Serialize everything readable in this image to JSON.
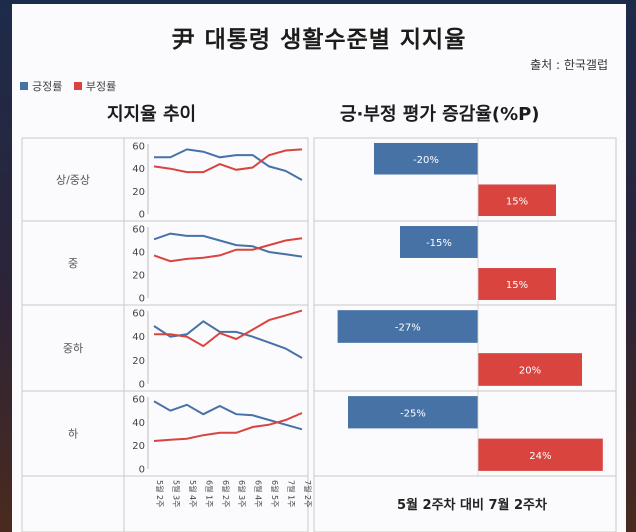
{
  "title": "尹 대통령 생활수준별 지지율",
  "source": "출처 : 한국갤럽",
  "legend": [
    {
      "label": "긍정률",
      "color": "#4672a6"
    },
    {
      "label": "부정률",
      "color": "#d9443f"
    }
  ],
  "left_panel_title": "지지율 추이",
  "right_panel_title": "긍·부정 평가 증감율(%P)",
  "footer": "5월 2주차 대비 7월 2주차",
  "chart_data": [
    {
      "type": "line",
      "title": "지지율 추이",
      "x": [
        "5월 2주",
        "5월 3주",
        "5월 4주",
        "6월 1주",
        "6월 2주",
        "6월 3주",
        "6월 4주",
        "6월 5주",
        "7월 1주",
        "7월 2주"
      ],
      "ylim": [
        0,
        60
      ],
      "yticks": [
        0,
        20,
        40,
        60
      ],
      "colors": {
        "positive": "#4672a6",
        "negative": "#d9443f"
      },
      "rows": [
        {
          "label": "상/중상",
          "series": [
            {
              "name": "긍정률",
              "values": [
                50,
                50,
                57,
                55,
                50,
                52,
                52,
                42,
                38,
                30
              ]
            },
            {
              "name": "부정률",
              "values": [
                42,
                40,
                37,
                37,
                44,
                39,
                41,
                52,
                56,
                57
              ]
            }
          ]
        },
        {
          "label": "중",
          "series": [
            {
              "name": "긍정률",
              "values": [
                51,
                56,
                54,
                54,
                50,
                46,
                45,
                40,
                38,
                36
              ]
            },
            {
              "name": "부정률",
              "values": [
                37,
                32,
                34,
                35,
                37,
                42,
                42,
                46,
                50,
                52
              ]
            }
          ]
        },
        {
          "label": "중하",
          "series": [
            {
              "name": "긍정률",
              "values": [
                49,
                40,
                42,
                53,
                44,
                44,
                40,
                35,
                30,
                22
              ]
            },
            {
              "name": "부정률",
              "values": [
                42,
                42,
                40,
                32,
                43,
                38,
                46,
                54,
                58,
                62
              ]
            }
          ]
        },
        {
          "label": "하",
          "series": [
            {
              "name": "긍정률",
              "values": [
                58,
                50,
                55,
                47,
                54,
                47,
                46,
                42,
                38,
                34
              ]
            },
            {
              "name": "부정률",
              "values": [
                24,
                25,
                26,
                29,
                31,
                31,
                36,
                38,
                42,
                48
              ]
            }
          ]
        }
      ]
    },
    {
      "type": "bar",
      "title": "긍·부정 평가 증감율(%P)",
      "categories": [
        "상/중상",
        "중",
        "중하",
        "하"
      ],
      "series": [
        {
          "name": "긍정률",
          "values": [
            -20,
            -15,
            -27,
            -25
          ],
          "labels": [
            "-20%",
            "-15%",
            "-27%",
            "-25%"
          ]
        },
        {
          "name": "부정률",
          "values": [
            15,
            15,
            20,
            24
          ],
          "labels": [
            "15%",
            "15%",
            "20%",
            "24%"
          ]
        }
      ]
    }
  ]
}
